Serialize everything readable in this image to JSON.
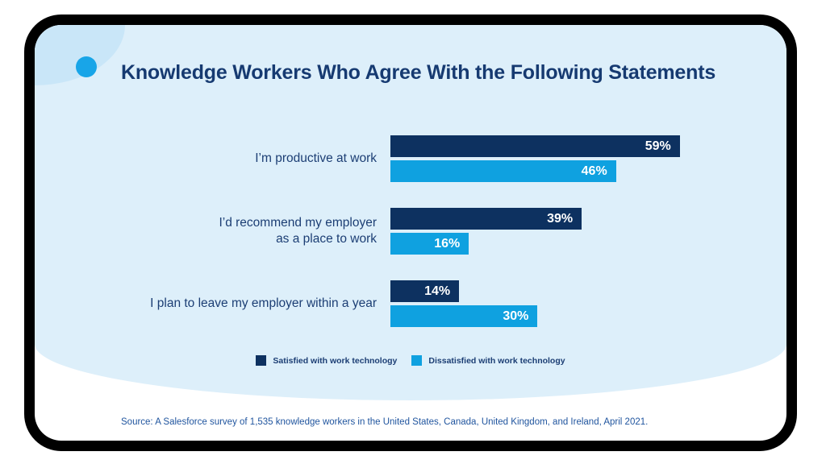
{
  "card": {
    "title": "Knowledge Workers Who Agree With the Following Statements",
    "source": "Source: A Salesforce survey of 1,535 knowledge workers in the United States, Canada, United Kingdom, and Ireland, April 2021.",
    "colors": {
      "frame": "#000000",
      "card_bg": "#ffffff",
      "panel_bg": "#ddeffa",
      "blob": "#c9e6f8",
      "accent_dot": "#18a5e8",
      "navy": "#0d3160",
      "sky": "#0fa1e0",
      "title_text": "#163a71",
      "label_text": "#1c3e74",
      "source_text": "#1f549e"
    }
  },
  "rows": [
    {
      "label_lines": [
        "I’m productive at work"
      ]
    },
    {
      "label_lines": [
        "I’d recommend my employer",
        "as a place to work"
      ]
    },
    {
      "label_lines": [
        "I plan to leave my employer within a year"
      ]
    }
  ],
  "legend": [
    {
      "label": "Satisfied with work technology",
      "color": "#0d3160"
    },
    {
      "label": "Dissatisfied with work technology",
      "color": "#0fa1e0"
    }
  ],
  "chart_data": {
    "type": "bar",
    "orientation": "horizontal",
    "title": "Knowledge Workers Who Agree With the Following Statements",
    "categories": [
      "I’m productive at work",
      "I’d recommend my employer as a place to work",
      "I plan to leave my employer within a year"
    ],
    "series": [
      {
        "name": "Satisfied with work technology",
        "color": "#0d3160",
        "values": [
          59,
          39,
          14
        ]
      },
      {
        "name": "Dissatisfied with work technology",
        "color": "#0fa1e0",
        "values": [
          46,
          16,
          30
        ]
      }
    ],
    "value_suffix": "%",
    "xlim": [
      0,
      100
    ],
    "value_labels": "inside-end",
    "legend_position": "bottom",
    "grid": false,
    "source": "Source: A Salesforce survey of 1,535 knowledge workers in the United States, Canada, United Kingdom, and Ireland, April 2021."
  }
}
